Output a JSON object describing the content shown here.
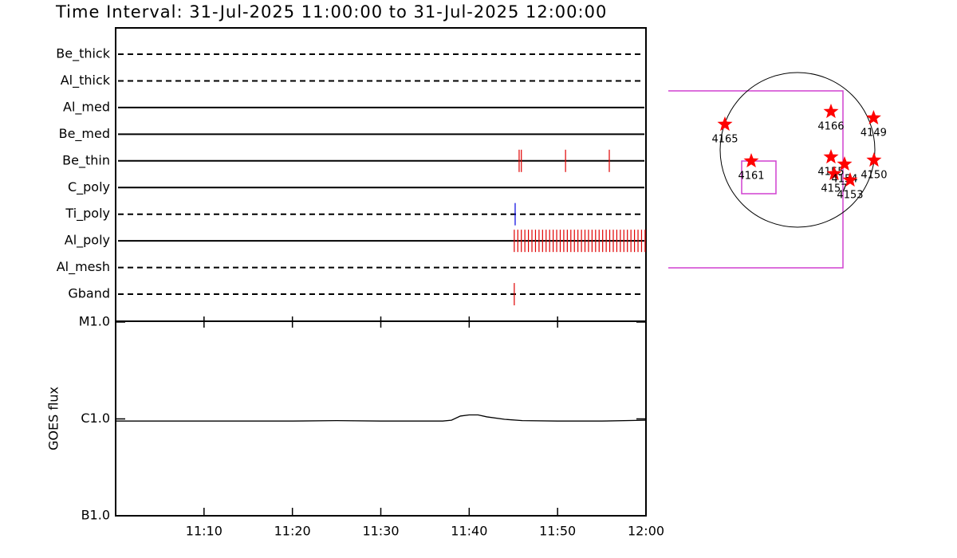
{
  "chart_data": [
    {
      "type": "timeline",
      "title": "Time Interval: 31-Jul-2025 11:00:00 to 31-Jul-2025 12:00:00",
      "xlim": [
        0,
        60
      ],
      "rows": [
        {
          "name": "Be_thick",
          "style": "dashed",
          "color": "#e00000",
          "x": []
        },
        {
          "name": "Al_thick",
          "style": "dashed",
          "color": "#e00000",
          "x": []
        },
        {
          "name": "Al_med",
          "style": "solid",
          "color": "#e00000",
          "x": []
        },
        {
          "name": "Be_med",
          "style": "solid",
          "color": "#e00000",
          "x": []
        },
        {
          "name": "Be_thin",
          "style": "solid",
          "color": "#e00000",
          "x": [
            45.65,
            45.9,
            50.9,
            55.85
          ]
        },
        {
          "name": "C_poly",
          "style": "solid",
          "color": "#e00000",
          "x": []
        },
        {
          "name": "Ti_poly",
          "style": "dashed",
          "color": "#0000e0",
          "x": [
            45.2
          ]
        },
        {
          "name": "Al_poly",
          "style": "solid",
          "color": "#e00000",
          "x": [
            45.1,
            45.5,
            45.9,
            46.3,
            46.7,
            47.1,
            47.5,
            47.9,
            48.3,
            48.7,
            49.1,
            49.5,
            49.9,
            50.3,
            50.7,
            51.1,
            51.5,
            51.9,
            52.3,
            52.7,
            53.1,
            53.5,
            53.9,
            54.3,
            54.7,
            55.1,
            55.5,
            55.9,
            56.3,
            56.7,
            57.1,
            57.5,
            57.9,
            58.3,
            58.7,
            59.1,
            59.5,
            59.9
          ]
        },
        {
          "name": "Al_mesh",
          "style": "dashed",
          "color": "#e00000",
          "x": []
        },
        {
          "name": "Gband",
          "style": "dashed",
          "color": "#e00000",
          "x": [
            45.1
          ]
        }
      ]
    },
    {
      "type": "line",
      "ylabel": "GOES flux",
      "log_scale": true,
      "color": "#000000",
      "x": [
        0,
        5,
        10,
        15,
        20,
        25,
        30,
        35,
        37,
        38,
        39,
        40,
        41,
        42,
        44,
        46,
        50,
        55,
        60
      ],
      "values": [
        9.5e-07,
        9.5e-07,
        9.5e-07,
        9.5e-07,
        9.5e-07,
        9.6e-07,
        9.5e-07,
        9.5e-07,
        9.5e-07,
        9.7e-07,
        1.07e-06,
        1.1e-06,
        1.1e-06,
        1.05e-06,
        9.9e-07,
        9.6e-07,
        9.5e-07,
        9.5e-07,
        9.7e-07
      ],
      "xlim": [
        0,
        60
      ],
      "xticks": [
        {
          "value": 10,
          "label": "11:10"
        },
        {
          "value": 20,
          "label": "11:20"
        },
        {
          "value": 30,
          "label": "11:30"
        },
        {
          "value": 40,
          "label": "11:40"
        },
        {
          "value": 50,
          "label": "11:50"
        },
        {
          "value": 60,
          "label": "12:00"
        }
      ],
      "ylim": [
        1e-07,
        1e-05
      ],
      "yticks": [
        {
          "value": 1e-07,
          "label": "B1.0"
        },
        {
          "value": 1e-06,
          "label": "C1.0"
        },
        {
          "value": 1e-05,
          "label": "M1.0"
        }
      ]
    },
    {
      "type": "map",
      "color": "#ff0000",
      "labels": [
        "4165",
        "4161",
        "4166",
        "4149",
        "4150",
        "4155",
        "4157",
        "4154",
        "4153"
      ],
      "x": [
        -887,
        -565,
        409,
        930,
        935,
        409,
        448,
        575,
        643
      ],
      "values": [
        312,
        -136,
        468,
        390,
        -127,
        -88,
        -292,
        -175,
        -370
      ]
    }
  ]
}
